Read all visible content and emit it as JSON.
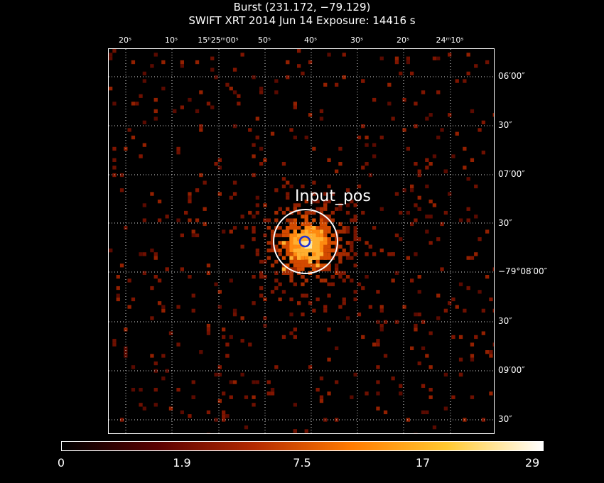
{
  "header": {
    "title": "Burst (231.172, −79.129)",
    "subtitle": "SWIFT XRT    2014 Jun 14     Exposure: 14416 s"
  },
  "top_ticks": [
    "20ˢ",
    "10ˢ",
    "15ʰ25ᵐ00ˢ",
    "50ˢ",
    "40ˢ",
    "30ˢ",
    "20ˢ",
    "24ᵐ10ˢ"
  ],
  "right_ticks": [
    "06′00″",
    "30″",
    "07′00″",
    "30″",
    "−79°08′00″",
    "30″",
    "09′00″",
    "30″"
  ],
  "annotation": {
    "label": "Input_pos",
    "circle_color": "#ffffff",
    "inner_color": "#1e2fd6"
  },
  "colorbar": {
    "ticks": [
      "0",
      "1.9",
      "7.5",
      "17",
      "29"
    ],
    "colors": [
      "#000000",
      "#5a0000",
      "#b32a00",
      "#ff7a00",
      "#ffc830",
      "#ffffff"
    ]
  }
}
